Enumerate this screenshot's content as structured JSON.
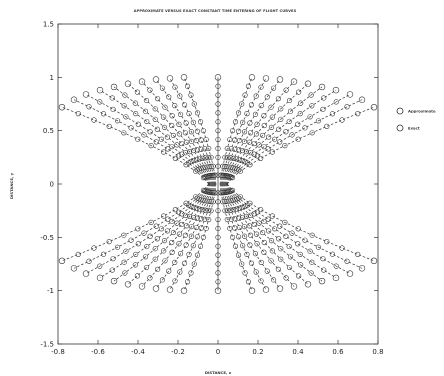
{
  "chart_data": {
    "type": "line",
    "title": "APPROXIMATE VERSUS EXACT CONSTANT TIME ENTERING OF FLIGHT CURVES",
    "xlabel": "DISTANCE, x",
    "ylabel": "DISTANCE, y",
    "xlim": [
      -0.8,
      0.8
    ],
    "ylim": [
      -1.5,
      1.5
    ],
    "xticks": [
      "-0.8",
      "-0.6",
      "-0.4",
      "-0.2",
      "0",
      "0.2",
      "0.4",
      "0.6",
      "0.8"
    ],
    "yticks": [
      "1.5",
      "1",
      "0.5",
      "0",
      "-0.5",
      "-1",
      "-1.5"
    ],
    "grid": false,
    "legend_position": "right",
    "series": [
      {
        "name": "Approximate",
        "line_style": "dashed",
        "marker": "circle"
      },
      {
        "name": "Exact",
        "line_style": "none",
        "marker": "circle"
      }
    ],
    "curve_endpoints": [
      [
        -0.78,
        0.72
      ],
      [
        -0.72,
        0.79
      ],
      [
        -0.66,
        0.84
      ],
      [
        -0.59,
        0.88
      ],
      [
        -0.52,
        0.91
      ],
      [
        -0.45,
        0.94
      ],
      [
        -0.38,
        0.96
      ],
      [
        -0.31,
        0.98
      ],
      [
        -0.24,
        0.99
      ],
      [
        -0.17,
        1.0
      ],
      [
        0.17,
        1.0
      ],
      [
        0.24,
        0.99
      ],
      [
        0.31,
        0.98
      ],
      [
        0.38,
        0.96
      ],
      [
        0.45,
        0.94
      ],
      [
        0.52,
        0.91
      ],
      [
        0.59,
        0.88
      ],
      [
        0.66,
        0.84
      ],
      [
        0.72,
        0.79
      ],
      [
        0.78,
        0.72
      ],
      [
        -0.78,
        -0.72
      ],
      [
        -0.72,
        -0.79
      ],
      [
        -0.66,
        -0.84
      ],
      [
        -0.59,
        -0.88
      ],
      [
        -0.52,
        -0.91
      ],
      [
        -0.45,
        -0.94
      ],
      [
        -0.38,
        -0.96
      ],
      [
        -0.31,
        -0.98
      ],
      [
        -0.24,
        -0.99
      ],
      [
        -0.17,
        -1.0
      ],
      [
        0.17,
        -1.0
      ],
      [
        0.24,
        -0.99
      ],
      [
        0.31,
        -0.98
      ],
      [
        0.38,
        -0.96
      ],
      [
        0.45,
        -0.94
      ],
      [
        0.52,
        -0.91
      ],
      [
        0.59,
        -0.88
      ],
      [
        0.66,
        -0.84
      ],
      [
        0.72,
        -0.79
      ],
      [
        0.78,
        -0.72
      ]
    ],
    "center_line": {
      "x": 0,
      "y_from": -1.0,
      "y_to": 1.0
    },
    "points_per_curve": 12
  }
}
